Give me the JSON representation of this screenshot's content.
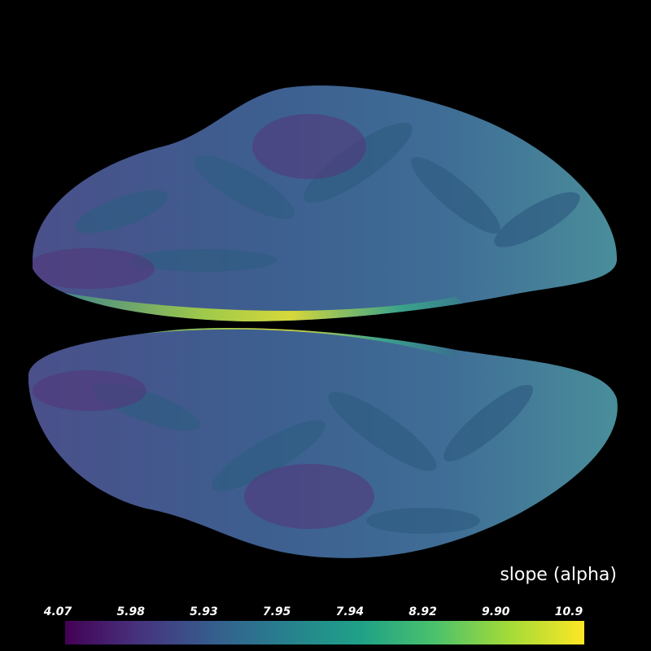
{
  "scalar_bar": {
    "title": "slope (alpha)",
    "labels": [
      "4.07",
      "5.98",
      "5.93",
      "7.95",
      "7.94",
      "8.92",
      "9.90",
      "10.9"
    ]
  }
}
